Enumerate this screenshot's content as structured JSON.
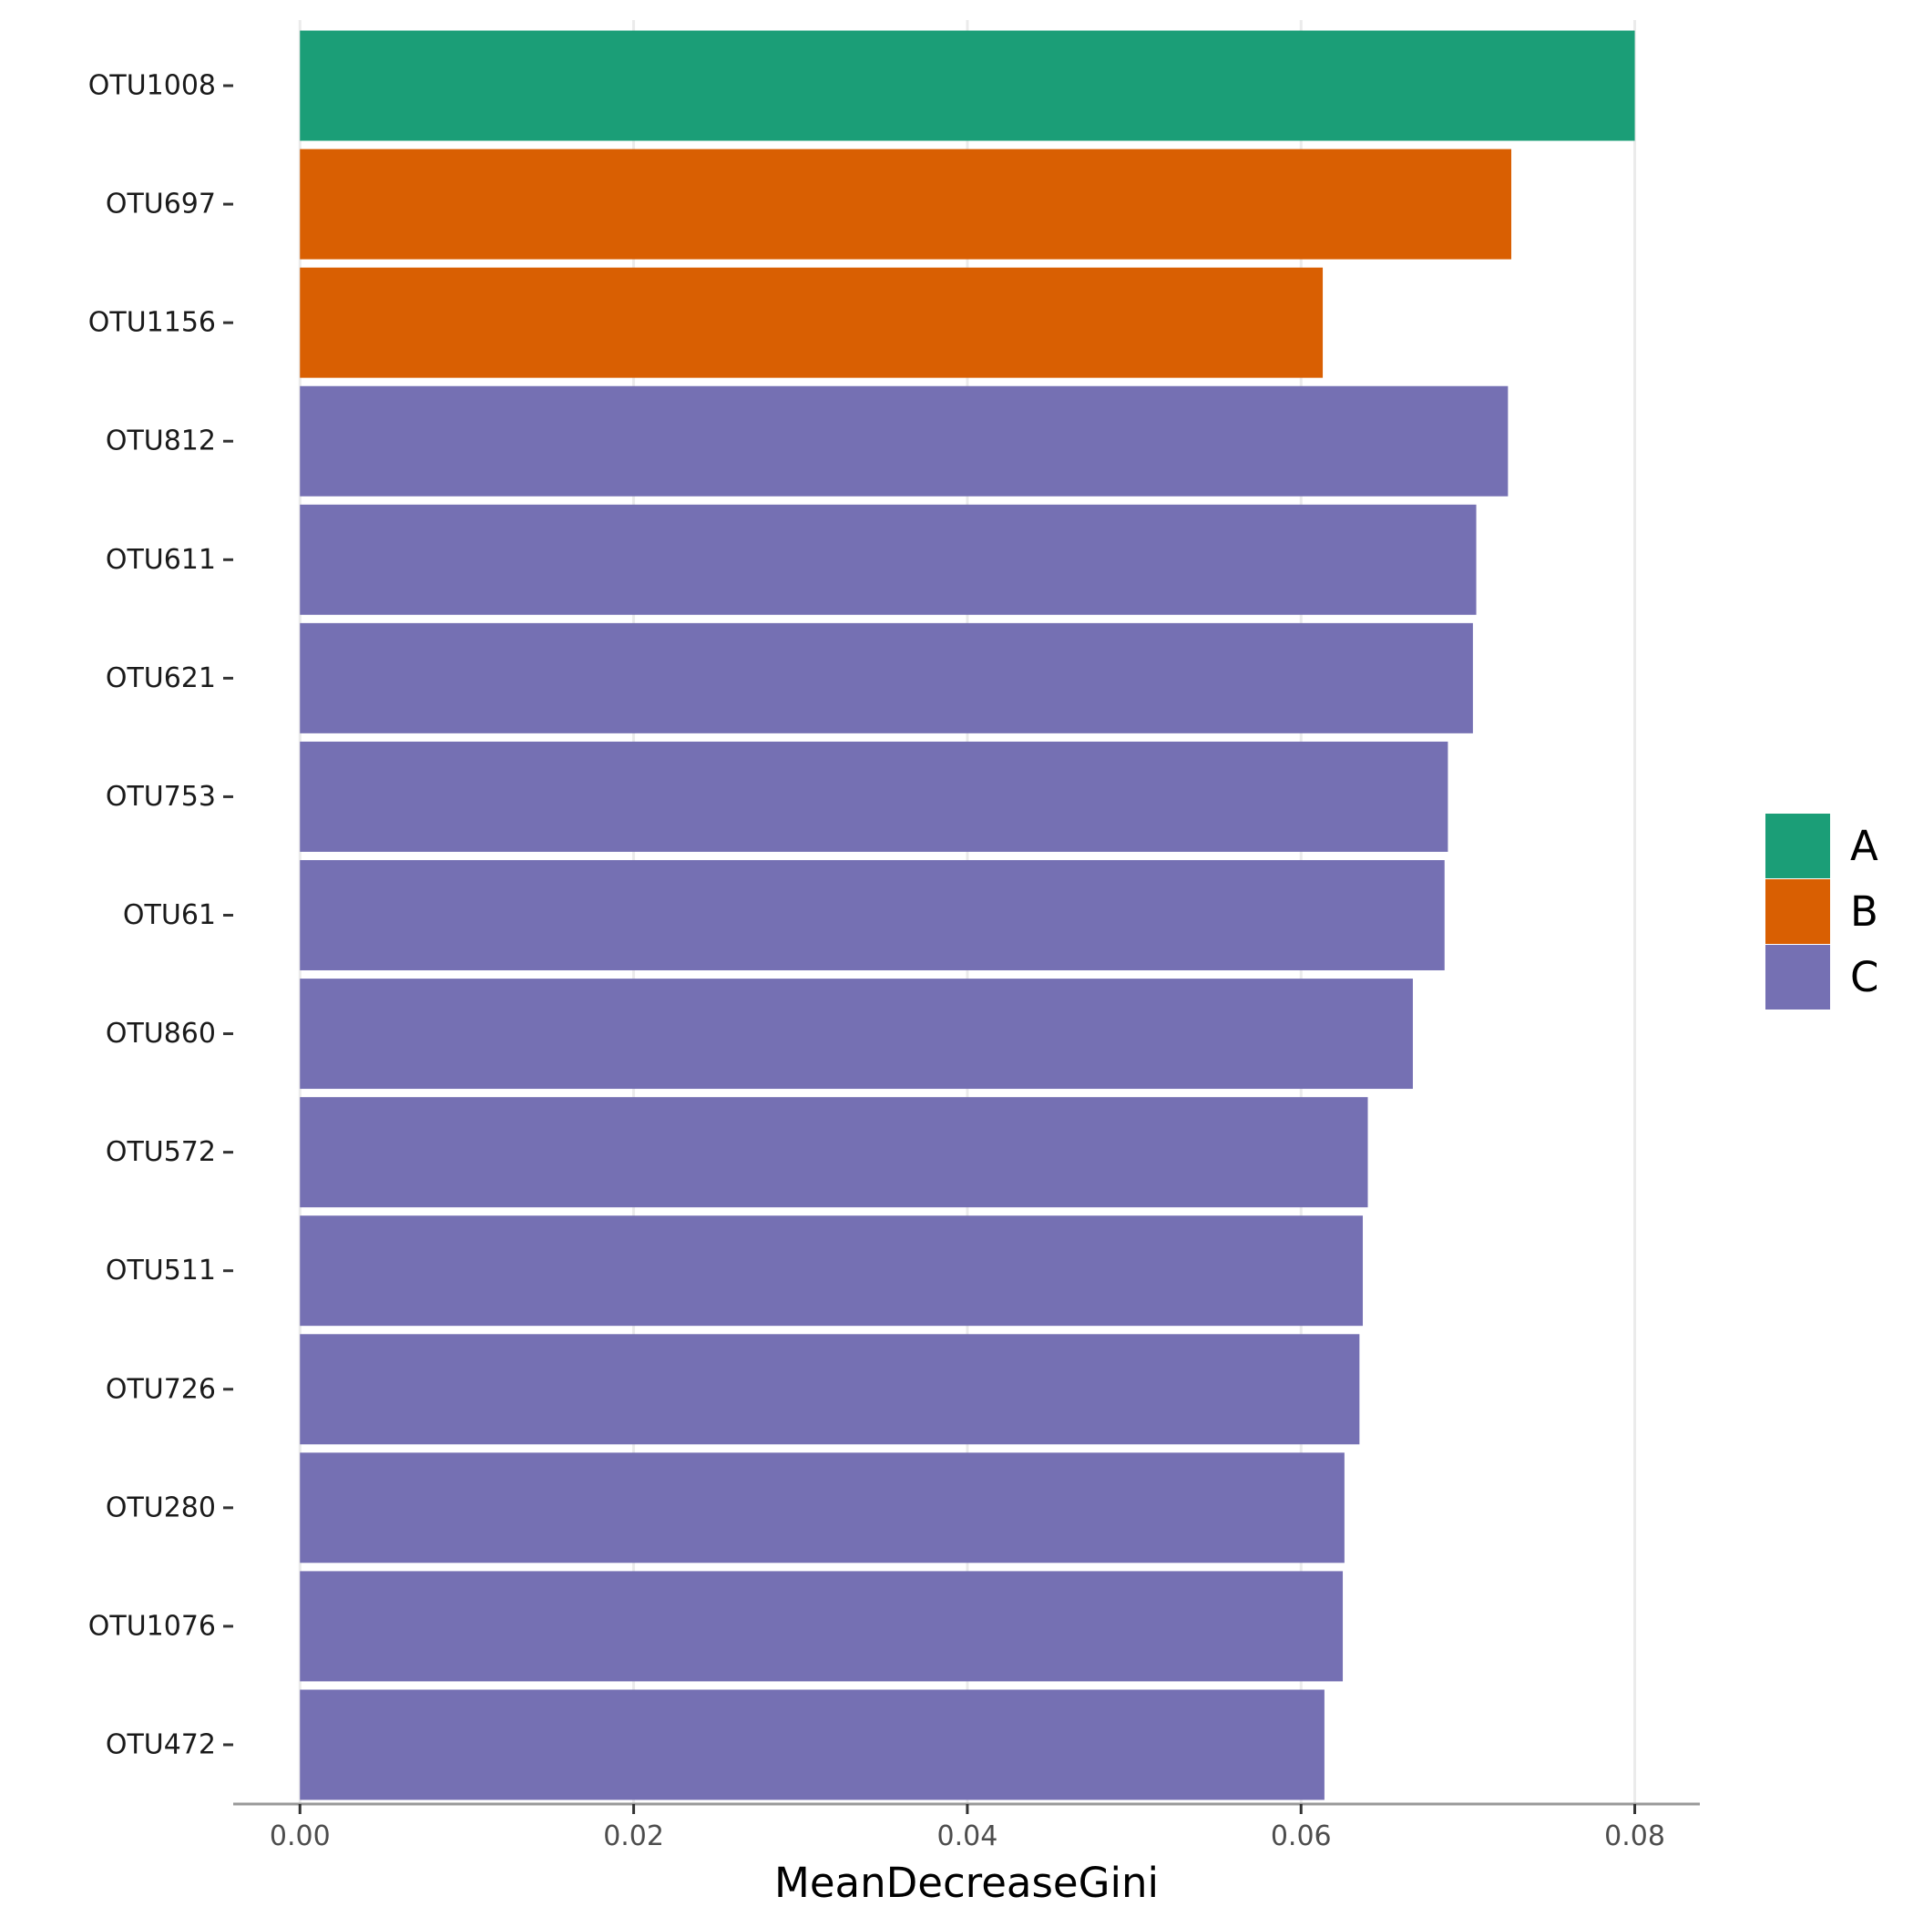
{
  "chart_data": {
    "type": "bar",
    "orientation": "horizontal",
    "categories": [
      "OTU1008",
      "OTU697",
      "OTU1156",
      "OTU812",
      "OTU611",
      "OTU621",
      "OTU753",
      "OTU61",
      "OTU860",
      "OTU572",
      "OTU511",
      "OTU726",
      "OTU280",
      "OTU1076",
      "OTU472"
    ],
    "values": [
      0.08,
      0.0726,
      0.0613,
      0.0724,
      0.0705,
      0.0703,
      0.0688,
      0.0686,
      0.0667,
      0.064,
      0.0637,
      0.0635,
      0.0626,
      0.0625,
      0.0614
    ],
    "groups": [
      "A",
      "B",
      "B",
      "C",
      "C",
      "C",
      "C",
      "C",
      "C",
      "C",
      "C",
      "C",
      "C",
      "C",
      "C"
    ],
    "xlabel": "MeanDecreaseGini",
    "ylabel": "",
    "xlim": [
      -0.004,
      0.0839
    ],
    "xticks": [
      0.0,
      0.02,
      0.04,
      0.06,
      0.08
    ],
    "xtick_labels": [
      "0.00",
      "0.02",
      "0.04",
      "0.06",
      "0.08"
    ],
    "grid": "vertical-major",
    "legend": {
      "placement": "right",
      "entries": [
        {
          "name": "A",
          "color": "#1b9e77"
        },
        {
          "name": "B",
          "color": "#d95f02"
        },
        {
          "name": "C",
          "color": "#7570b3"
        }
      ]
    }
  }
}
